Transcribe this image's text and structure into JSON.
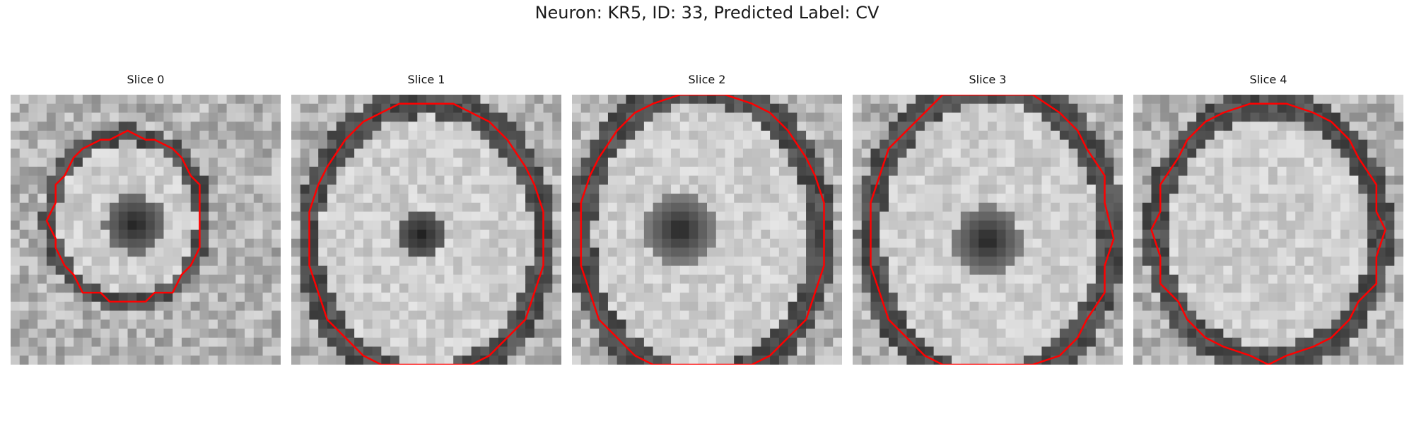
{
  "figure": {
    "title": "Neuron: KR5, ID: 33, Predicted Label: CV"
  },
  "slices": [
    {
      "label": "Slice 0"
    },
    {
      "label": "Slice 1"
    },
    {
      "label": "Slice 2"
    },
    {
      "label": "Slice 3"
    },
    {
      "label": "Slice 4"
    }
  ],
  "colors": {
    "contour": "#ff0000",
    "colormap": "grayscale"
  }
}
